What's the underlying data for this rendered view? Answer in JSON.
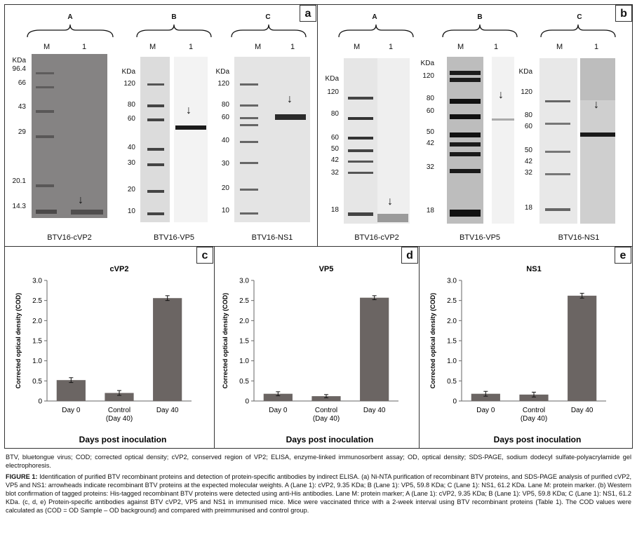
{
  "panel_tags": {
    "a": "a",
    "b": "b",
    "c": "c",
    "d": "d",
    "e": "e"
  },
  "gel_a": {
    "gels": [
      {
        "letter": "A",
        "name": "BTV16-cVP2",
        "markers": [
          "96.4",
          "66",
          "43",
          "29",
          "20.1",
          "14.3"
        ]
      },
      {
        "letter": "B",
        "name": "BTV16-VP5",
        "markers": [
          "120",
          "80",
          "60",
          "40",
          "30",
          "20",
          "10"
        ]
      },
      {
        "letter": "C",
        "name": "BTV16-NS1",
        "markers": [
          "120",
          "80",
          "60",
          "40",
          "30",
          "20",
          "10"
        ]
      }
    ]
  },
  "gel_b": {
    "gels": [
      {
        "letter": "A",
        "name": "BTV16-cVP2",
        "markers": [
          "120",
          "80",
          "60",
          "50",
          "42",
          "32",
          "18"
        ]
      },
      {
        "letter": "B",
        "name": "BTV16-VP5",
        "markers": [
          "120",
          "80",
          "60",
          "50",
          "42",
          "32",
          "18"
        ]
      },
      {
        "letter": "C",
        "name": "BTV16-NS1",
        "markers": [
          "120",
          "80",
          "60",
          "50",
          "42",
          "32",
          "18"
        ]
      }
    ]
  },
  "lane_labels": {
    "m": "M",
    "one": "1"
  },
  "kda_label": "KDa",
  "kda_label_b": "KDa",
  "chart_data": [
    {
      "type": "bar",
      "title": "cVP2",
      "categories": [
        "Day 0",
        "Control (Day 40)",
        "Day 40"
      ],
      "values": [
        0.52,
        0.2,
        2.56
      ],
      "errors": [
        0.06,
        0.06,
        0.06
      ],
      "xlabel": "Days post inoculation",
      "ylabel": "Corrected optical density (COD)",
      "ylim": [
        0,
        3.0
      ],
      "yticks": [
        "0",
        "0.5",
        "1.0",
        "1.5",
        "2.0",
        "2.5",
        "3.0"
      ],
      "color": "#6b6563"
    },
    {
      "type": "bar",
      "title": "VP5",
      "categories": [
        "Day 0",
        "Control (Day 40)",
        "Day 40"
      ],
      "values": [
        0.18,
        0.12,
        2.57
      ],
      "errors": [
        0.05,
        0.04,
        0.05
      ],
      "xlabel": "Days post inoculation",
      "ylabel": "Corrected optical density (COD)",
      "ylim": [
        0,
        3.0
      ],
      "yticks": [
        "0",
        "0.5",
        "1.0",
        "1.5",
        "2.0",
        "2.5",
        "3.0"
      ],
      "color": "#6b6563"
    },
    {
      "type": "bar",
      "title": "NS1",
      "categories": [
        "Day 0",
        "Control (Day 40)",
        "Day 40"
      ],
      "values": [
        0.18,
        0.16,
        2.62
      ],
      "errors": [
        0.06,
        0.06,
        0.06
      ],
      "xlabel": "Days post inoculation",
      "ylabel": "Corrected optical density (COD)",
      "ylim": [
        0,
        3.0
      ],
      "yticks": [
        "0",
        "0.5",
        "1.0",
        "1.5",
        "2.0",
        "2.5",
        "3.0"
      ],
      "color": "#6b6563"
    }
  ],
  "abbreviations": "BTV, bluetongue virus; COD; corrected optical density; cVP2, conserved region of VP2; ELISA, enzyme-linked immunosorbent assay; OD, optical density; SDS-PAGE, sodium dodecyl sulfate-polyacrylamide gel electrophoresis.",
  "caption_label": "FIGURE 1:",
  "caption_text": "Identification of purified BTV recombinant proteins and detection of protein-specific antibodies by indirect ELISA. (a) Ni-NTA purification of recombinant BTV proteins, and SDS-PAGE analysis of purified cVP2, VP5 and NS1: arrowheads indicate recombinant BTV proteins at the expected molecular weights. A (Lane 1): cVP2, 9.35 KDa; B (Lane 1): VP5, 59.8 KDa; C (Lane 1): NS1, 61.2 KDa. Lane M: protein marker. (b) Western blot confirmation of tagged proteins: His-tagged recombinant BTV proteins were detected using anti-His antibodies. Lane M: protein marker; A (Lane 1): cVP2, 9.35 KDa; B (Lane 1): VP5, 59.8 KDa; C (Lane 1): NS1, 61.2 KDa. (c, d, e) Protein-specific antibodies against BTV cVP2, VP5 and NS1 in immunised mice. Mice were vaccinated thrice with a 2-week interval using BTV recombinant proteins (Table 1). The COD values were calculated as (COD = OD Sample – OD background) and compared with preimmunised and control group."
}
